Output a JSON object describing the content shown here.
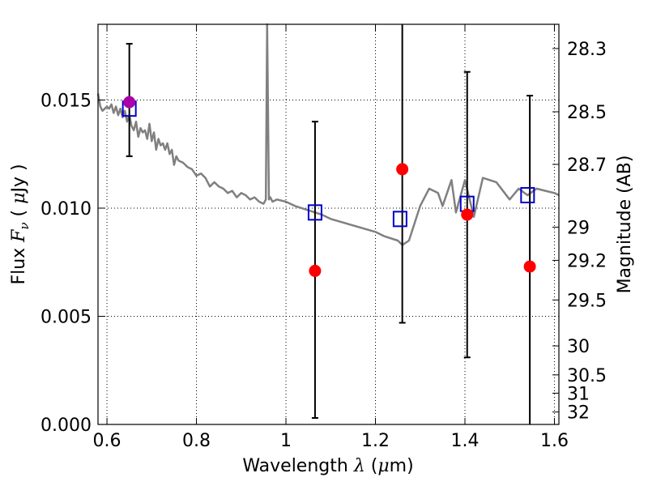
{
  "chart_data": {
    "type": "scatter",
    "xlabel": {
      "pre": "Wavelength  ",
      "sym": "λ",
      "mid": " (",
      "mu": "μ",
      "post": "m)"
    },
    "ylabel": {
      "pre": "Flux  ",
      "sym": "F",
      "sub": "ν",
      "mid": "  ( ",
      "mu": "μ",
      "post": "Jy )"
    },
    "ylabel_right": "Magnitude (AB)",
    "xlim": [
      0.58,
      1.61
    ],
    "ylim": [
      0.0,
      0.0185
    ],
    "grid": true,
    "x_ticks": [
      0.6,
      0.8,
      1.0,
      1.2,
      1.4,
      1.6
    ],
    "x_tick_labels": [
      "0.6",
      "0.8",
      "1",
      "1.2",
      "1.4",
      "1.6"
    ],
    "y_ticks": [
      0.0,
      0.005,
      0.01,
      0.015
    ],
    "y_tick_labels": [
      "0.000",
      "0.005",
      "0.010",
      "0.015"
    ],
    "mag_ticks": [
      28.3,
      28.5,
      28.7,
      29,
      29.2,
      29.5,
      30,
      30.5,
      31,
      32
    ],
    "mag_tick_labels": [
      "28.3",
      "28.5",
      "28.7",
      "29",
      "29.2",
      "29.5",
      "30",
      "30.5",
      "31",
      "32"
    ],
    "model_spectrum": {
      "color": "#808080",
      "x": [
        0.58,
        0.585,
        0.59,
        0.6,
        0.605,
        0.61,
        0.615,
        0.62,
        0.625,
        0.63,
        0.635,
        0.64,
        0.645,
        0.65,
        0.655,
        0.66,
        0.665,
        0.67,
        0.675,
        0.68,
        0.685,
        0.69,
        0.695,
        0.7,
        0.705,
        0.71,
        0.715,
        0.72,
        0.725,
        0.73,
        0.735,
        0.74,
        0.745,
        0.75,
        0.755,
        0.76,
        0.77,
        0.78,
        0.79,
        0.8,
        0.81,
        0.82,
        0.83,
        0.84,
        0.85,
        0.86,
        0.87,
        0.88,
        0.89,
        0.9,
        0.91,
        0.92,
        0.93,
        0.94,
        0.95,
        0.955,
        0.958,
        0.962,
        0.965,
        0.97,
        0.98,
        1.0,
        1.02,
        1.05,
        1.08,
        1.1,
        1.15,
        1.2,
        1.22,
        1.25,
        1.26,
        1.275,
        1.3,
        1.32,
        1.34,
        1.35,
        1.37,
        1.38,
        1.4,
        1.42,
        1.44,
        1.47,
        1.5,
        1.52,
        1.54,
        1.56,
        1.58,
        1.6,
        1.61
      ],
      "y": [
        0.0153,
        0.0147,
        0.0145,
        0.0147,
        0.0146,
        0.0148,
        0.0144,
        0.0147,
        0.0143,
        0.0146,
        0.0142,
        0.0145,
        0.014,
        0.0143,
        0.0138,
        0.0136,
        0.014,
        0.0133,
        0.0137,
        0.0135,
        0.0136,
        0.0132,
        0.0139,
        0.0131,
        0.0135,
        0.0127,
        0.0132,
        0.0129,
        0.013,
        0.0127,
        0.013,
        0.0125,
        0.0127,
        0.012,
        0.0124,
        0.0122,
        0.0121,
        0.0119,
        0.0118,
        0.0115,
        0.0116,
        0.0114,
        0.011,
        0.0112,
        0.011,
        0.0109,
        0.0107,
        0.0108,
        0.0105,
        0.0107,
        0.0106,
        0.0104,
        0.0105,
        0.0103,
        0.0102,
        0.0104,
        0.0188,
        0.0104,
        0.0105,
        0.0103,
        0.0104,
        0.0103,
        0.0101,
        0.0099,
        0.0097,
        0.0095,
        0.0092,
        0.0089,
        0.0087,
        0.0085,
        0.0083,
        0.0085,
        0.0101,
        0.0109,
        0.0107,
        0.0101,
        0.0113,
        0.0098,
        0.0113,
        0.0096,
        0.0114,
        0.0112,
        0.0104,
        0.0109,
        0.0106,
        0.0109,
        0.0108,
        0.0107,
        0.0106
      ]
    },
    "model_photometry": {
      "marker": "open-square",
      "color": "#0000cc",
      "x": [
        0.65,
        1.065,
        1.255,
        1.405,
        1.54
      ],
      "y": [
        0.0146,
        0.0098,
        0.0095,
        0.0102,
        0.0106
      ]
    },
    "observed": {
      "marker": "filled-circle",
      "color": "#ff0000",
      "first_point_color": "#aa00aa",
      "x": [
        0.65,
        1.065,
        1.26,
        1.405,
        1.545
      ],
      "y": [
        0.0149,
        0.0071,
        0.0118,
        0.0097,
        0.0073
      ],
      "err_low": [
        0.0124,
        0.0003,
        0.0047,
        0.0031,
        0.0
      ],
      "err_high": [
        0.0176,
        0.014,
        0.0185,
        0.0163,
        0.0152
      ]
    }
  }
}
